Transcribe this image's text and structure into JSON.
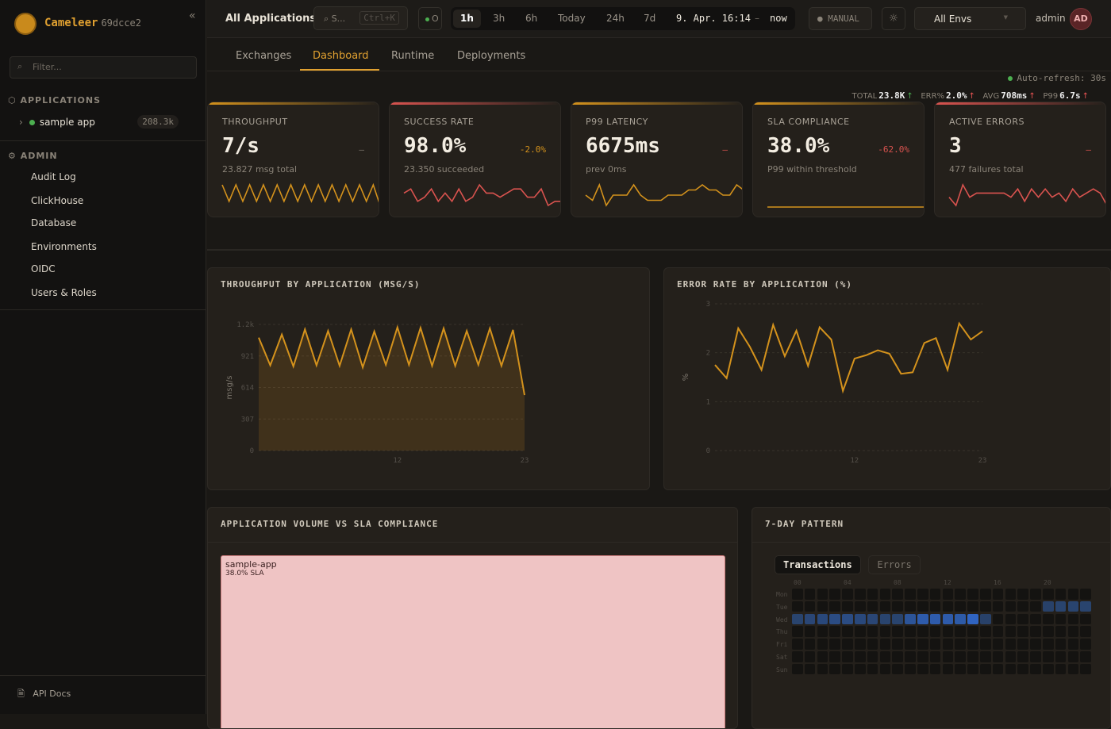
{
  "sidebar": {
    "brand": "Cameleer",
    "version": "69dcce2",
    "collapse_icon": "«",
    "filter_placeholder": "Filter...",
    "applications_label": "APPLICATIONS",
    "apps": [
      {
        "name": "sample app",
        "count": "208.3k",
        "status_color": "#4caf50"
      }
    ],
    "admin_label": "ADMIN",
    "admin_items": [
      "Audit Log",
      "ClickHouse",
      "Database",
      "Environments",
      "OIDC",
      "Users & Roles"
    ],
    "api_docs": "API Docs"
  },
  "topbar": {
    "title": "All Applications",
    "search": "S...",
    "search_shortcut": "Ctrl+K",
    "status": "O",
    "ranges": [
      "1h",
      "3h",
      "6h",
      "Today",
      "24h",
      "7d"
    ],
    "active_range": "1h",
    "range_from": "9. Apr. 16:14",
    "range_sep": "–",
    "range_to": "now",
    "refresh_mode": "MANUAL",
    "env": "All Envs",
    "user": "admin",
    "avatar": "AD"
  },
  "tabs": [
    "Exchanges",
    "Dashboard",
    "Runtime",
    "Deployments"
  ],
  "active_tab": "Dashboard",
  "kpis": [
    {
      "label": "TOTAL",
      "value": "23.8K",
      "trend": "↑",
      "color": "#4caf50"
    },
    {
      "label": "ERR%",
      "value": "2.0%",
      "trend": "↑",
      "color": "#e55555"
    },
    {
      "label": "AVG",
      "value": "708ms",
      "trend": "↑",
      "color": "#e55555"
    },
    {
      "label": "P99",
      "value": "6.7s",
      "trend": "↑",
      "color": "#e55555"
    }
  ],
  "auto_refresh": "Auto-refresh: 30s",
  "cards": [
    {
      "label": "THROUGHPUT",
      "value": "7/s",
      "change": "–",
      "change_color": "#7a746b",
      "sub": "23.827 msg total",
      "accent": "#d4921c",
      "spark_color": "#d4921c",
      "spark": [
        5,
        1,
        5,
        1,
        5,
        1,
        5,
        1,
        5,
        1,
        5,
        1,
        5,
        1,
        5,
        1,
        5,
        1,
        5,
        1,
        5,
        1,
        5,
        0
      ]
    },
    {
      "label": "SUCCESS RATE",
      "value": "98.0%",
      "change": "-2.0%",
      "change_color": "#d4921c",
      "sub": "23.350 succeeded",
      "accent": "#d9534f",
      "spark_color": "#d9534f",
      "spark": [
        3,
        4,
        1,
        2,
        4,
        1,
        3,
        1,
        4,
        1,
        2,
        5,
        3,
        3,
        2,
        3,
        4,
        4,
        2,
        2,
        4,
        0,
        1,
        1
      ]
    },
    {
      "label": "P99 LATENCY",
      "value": "6675ms",
      "change": "–",
      "change_color": "#d9534f",
      "sub": "prev 0ms",
      "accent": "#d4921c",
      "spark_color": "#d4921c",
      "spark": [
        2,
        1,
        4,
        0,
        2,
        2,
        2,
        4,
        2,
        1,
        1,
        1,
        2,
        2,
        2,
        3,
        3,
        4,
        3,
        3,
        2,
        2,
        4,
        3
      ]
    },
    {
      "label": "SLA COMPLIANCE",
      "value": "38.0%",
      "change": "-62.0%",
      "change_color": "#d9534f",
      "sub": "P99 within threshold",
      "accent": "#d4921c",
      "spark_color": "#d4921c",
      "spark": [
        0,
        0
      ]
    },
    {
      "label": "ACTIVE ERRORS",
      "value": "3",
      "change": "–",
      "change_color": "#d9534f",
      "sub": "477 failures total",
      "accent": "#d9534f",
      "spark_color": "#d9534f",
      "spark": [
        2,
        0,
        5,
        2,
        3,
        3,
        3,
        3,
        3,
        2,
        4,
        1,
        4,
        2,
        4,
        2,
        3,
        1,
        4,
        2,
        3,
        4,
        3,
        0
      ]
    }
  ],
  "chart_data": [
    {
      "type": "area",
      "title": "THROUGHPUT BY APPLICATION (MSG/S)",
      "ylabel": "msg/s",
      "xlabel": "",
      "ylim": [
        0,
        1228
      ],
      "yticks": [
        "0",
        "307",
        "614",
        "921",
        "1.2k"
      ],
      "ytick_values": [
        0,
        307,
        614,
        921,
        1228
      ],
      "xticks": [
        "12",
        "23"
      ],
      "xtick_values": [
        12,
        23
      ],
      "grid": true,
      "color": "#d4921c",
      "x": [
        0,
        1,
        2,
        3,
        4,
        5,
        6,
        7,
        8,
        9,
        10,
        11,
        12,
        13,
        14,
        15,
        16,
        17,
        18,
        19,
        20,
        21,
        22,
        23
      ],
      "y": [
        1100,
        830,
        1130,
        820,
        1180,
        830,
        1165,
        825,
        1180,
        810,
        1160,
        835,
        1200,
        835,
        1195,
        825,
        1190,
        825,
        1165,
        835,
        1190,
        825,
        1175,
        540
      ]
    },
    {
      "type": "line",
      "title": "ERROR RATE BY APPLICATION (%)",
      "ylabel": "%",
      "xlabel": "",
      "ylim": [
        0,
        3
      ],
      "yticks": [
        "0",
        "1",
        "2",
        "3"
      ],
      "ytick_values": [
        0,
        1,
        2,
        3
      ],
      "xticks": [
        "12",
        "23"
      ],
      "xtick_values": [
        12,
        23
      ],
      "grid": true,
      "color": "#d4921c",
      "x": [
        0,
        1,
        2,
        3,
        4,
        5,
        6,
        7,
        8,
        9,
        10,
        11,
        12,
        13,
        14,
        15,
        16,
        17,
        18,
        19,
        20,
        21,
        22,
        23
      ],
      "y": [
        1.75,
        1.48,
        2.5,
        2.12,
        1.65,
        2.57,
        1.93,
        2.45,
        1.73,
        2.52,
        2.27,
        1.22,
        1.88,
        1.95,
        2.05,
        1.98,
        1.57,
        1.6,
        2.2,
        2.3,
        1.65,
        2.6,
        2.27,
        2.44
      ]
    }
  ],
  "volume_panel": {
    "title": "APPLICATION VOLUME VS SLA COMPLIANCE",
    "app": "sample-app",
    "sla": "38.0% SLA",
    "color": "#efc4c4"
  },
  "pattern_panel": {
    "title": "7-DAY PATTERN",
    "tabs": [
      "Transactions",
      "Errors"
    ],
    "active_tab": "Transactions",
    "hour_labels": [
      "00",
      "04",
      "08",
      "12",
      "16",
      "20"
    ],
    "days": [
      "Mon",
      "Tue",
      "Wed",
      "Thu",
      "Fri",
      "Sat",
      "Sun"
    ],
    "intensity": {
      "Tue": {
        "20": 0.25,
        "21": 0.3,
        "22": 0.3,
        "23": 0.3
      },
      "Wed": {
        "0": 0.3,
        "1": 0.35,
        "2": 0.4,
        "3": 0.45,
        "4": 0.45,
        "5": 0.4,
        "6": 0.35,
        "7": 0.3,
        "8": 0.3,
        "9": 0.6,
        "10": 0.72,
        "11": 0.72,
        "12": 0.72,
        "13": 0.7,
        "14": 0.85,
        "15": 0.25
      }
    }
  }
}
